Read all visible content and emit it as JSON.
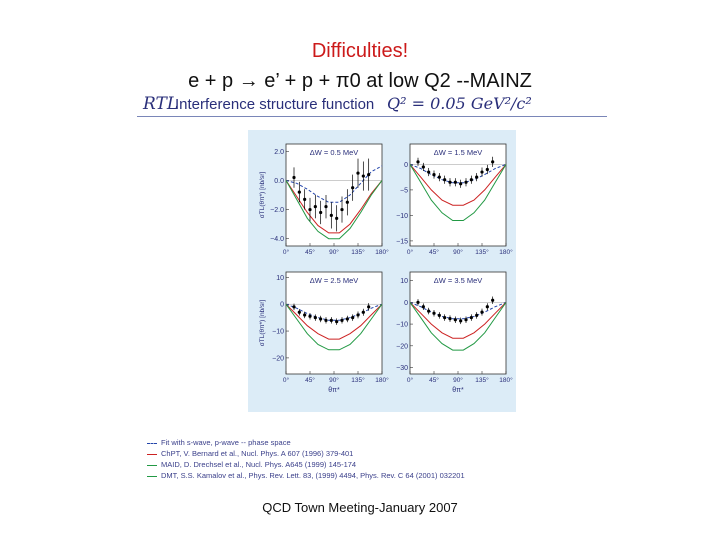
{
  "slide": {
    "title": "Difficulties!",
    "subtitle": "e + p → e’ + p + π0 at low Q2 --MAINZ",
    "footer": "QCD Town Meeting-January 2007"
  },
  "figure": {
    "rtl_label": "RTL",
    "header": "Interference structure function",
    "q2_label": "Q² = 0.05 GeV²/c²"
  },
  "legend": [
    {
      "label": "Fit with s-wave, p-wave -- phase space",
      "color": "#2244aa"
    },
    {
      "label": "ChPT, V. Bernard et al., Nucl. Phys. A 607 (1996) 379-401",
      "color": "#cc2222"
    },
    {
      "label": "MAID, D. Drechsel et al., Nucl. Phys. A645 (1999) 145-174",
      "color": "#229944"
    },
    {
      "label": "DMT, S.S. Kamalov et al., Phys. Rev. Lett. 83, (1999) 4494, Phys. Rev. C 64 (2001) 032201",
      "color": "#229944"
    }
  ],
  "colors": {
    "title": "#cc1a1a",
    "panel_bg": "#dcecf7",
    "fit": "#2244aa",
    "chpt": "#cc2222",
    "maid": "#229944"
  },
  "chart_data": [
    {
      "type": "line",
      "label": "ΔW = 0.5 MeV",
      "ylabel": "σTL(θπ*) [nb/sr]",
      "xlim": [
        0,
        180
      ],
      "ylim": [
        -4.5,
        2.5
      ],
      "xticks": [
        "0°",
        "45°",
        "90°",
        "135°",
        "180°"
      ],
      "yticks": [
        {
          "v": 2.0,
          "t": "2.0"
        },
        {
          "v": 0.0,
          "t": "0.0"
        },
        {
          "v": -2.0,
          "t": "−2.0"
        },
        {
          "v": -4.0,
          "t": "−4.0"
        }
      ],
      "points": {
        "x": [
          15,
          25,
          35,
          45,
          55,
          65,
          75,
          85,
          95,
          105,
          115,
          125,
          135,
          145,
          155
        ],
        "y": [
          0.2,
          -0.8,
          -1.3,
          -2.0,
          -1.8,
          -2.2,
          -1.8,
          -2.4,
          -2.6,
          -2.0,
          -1.5,
          -0.5,
          0.5,
          0.3,
          0.4
        ],
        "err": [
          0.7,
          0.7,
          0.7,
          0.8,
          0.8,
          0.8,
          0.8,
          0.9,
          0.9,
          0.9,
          0.9,
          0.9,
          1.0,
          1.0,
          1.1
        ]
      },
      "series": [
        {
          "x": [
            0,
            20,
            40,
            60,
            80,
            100,
            120,
            140,
            160,
            180
          ],
          "y": [
            0.0,
            -0.2,
            -0.6,
            -1.1,
            -1.5,
            -1.5,
            -1.0,
            -0.2,
            0.6,
            1.0
          ],
          "color": "#2244aa",
          "dash": true
        },
        {
          "x": [
            0,
            20,
            40,
            60,
            80,
            100,
            120,
            140,
            160,
            180
          ],
          "y": [
            0.0,
            -1.1,
            -2.2,
            -3.1,
            -3.6,
            -3.6,
            -3.0,
            -2.0,
            -0.9,
            0.0
          ],
          "color": "#cc2222"
        },
        {
          "x": [
            0,
            20,
            40,
            60,
            80,
            100,
            120,
            140,
            160,
            180
          ],
          "y": [
            0.0,
            -1.3,
            -2.6,
            -3.5,
            -4.0,
            -4.0,
            -3.3,
            -2.2,
            -1.0,
            0.0
          ],
          "color": "#229944"
        }
      ]
    },
    {
      "type": "line",
      "label": "ΔW = 1.5 MeV",
      "ylabel": "",
      "xlim": [
        0,
        180
      ],
      "ylim": [
        -16,
        4
      ],
      "xticks": [
        "0°",
        "45°",
        "90°",
        "135°",
        "180°"
      ],
      "yticks": [
        {
          "v": 0,
          "t": "0"
        },
        {
          "v": -5,
          "t": "−5"
        },
        {
          "v": -10,
          "t": "−10"
        },
        {
          "v": -15,
          "t": "−15"
        }
      ],
      "points": {
        "x": [
          15,
          25,
          35,
          45,
          55,
          65,
          75,
          85,
          95,
          105,
          115,
          125,
          135,
          145,
          155
        ],
        "y": [
          0.5,
          -0.5,
          -1.5,
          -2.0,
          -2.5,
          -3.0,
          -3.5,
          -3.5,
          -3.8,
          -3.5,
          -3.0,
          -2.5,
          -1.5,
          -1.0,
          0.5
        ],
        "err": [
          0.8,
          0.8,
          0.8,
          0.8,
          0.8,
          0.8,
          0.8,
          0.8,
          0.8,
          0.8,
          0.8,
          0.8,
          0.9,
          0.9,
          1.0
        ]
      },
      "series": [
        {
          "x": [
            0,
            20,
            40,
            60,
            80,
            100,
            120,
            140,
            160,
            180
          ],
          "y": [
            0.0,
            -0.8,
            -2.0,
            -3.0,
            -3.6,
            -3.6,
            -3.0,
            -2.0,
            -0.8,
            0.0
          ],
          "color": "#2244aa",
          "dash": true
        },
        {
          "x": [
            0,
            20,
            40,
            60,
            80,
            100,
            120,
            140,
            160,
            180
          ],
          "y": [
            0.0,
            -2.5,
            -5.0,
            -7.0,
            -8.0,
            -8.0,
            -7.0,
            -5.0,
            -2.5,
            0.0
          ],
          "color": "#cc2222"
        },
        {
          "x": [
            0,
            20,
            40,
            60,
            80,
            100,
            120,
            140,
            160,
            180
          ],
          "y": [
            0.0,
            -3.5,
            -7.0,
            -9.5,
            -11.0,
            -11.0,
            -9.5,
            -7.0,
            -3.5,
            0.0
          ],
          "color": "#229944"
        }
      ]
    },
    {
      "type": "line",
      "label": "ΔW = 2.5 MeV",
      "ylabel": "σTL(θπ*) [nb/sr]",
      "xlim": [
        0,
        180
      ],
      "ylim": [
        -26,
        12
      ],
      "xticks": [
        "0°",
        "45°",
        "90°",
        "135°",
        "180°"
      ],
      "yticks": [
        {
          "v": 10,
          "t": "10"
        },
        {
          "v": 0,
          "t": "0"
        },
        {
          "v": -10,
          "t": "−10"
        },
        {
          "v": -20,
          "t": "−20"
        }
      ],
      "xlabel": "θπ*",
      "points": {
        "x": [
          15,
          25,
          35,
          45,
          55,
          65,
          75,
          85,
          95,
          105,
          115,
          125,
          135,
          145,
          155
        ],
        "y": [
          -1,
          -3,
          -4,
          -4.5,
          -5,
          -5.5,
          -6,
          -6,
          -6.5,
          -6,
          -5.5,
          -5,
          -4,
          -3,
          -1
        ],
        "err": [
          1.2,
          1.2,
          1.2,
          1.2,
          1.2,
          1.2,
          1.2,
          1.2,
          1.2,
          1.2,
          1.2,
          1.2,
          1.3,
          1.3,
          1.4
        ]
      },
      "series": [
        {
          "x": [
            0,
            20,
            40,
            60,
            80,
            100,
            120,
            140,
            160,
            180
          ],
          "y": [
            0.0,
            -1.5,
            -3.5,
            -5.0,
            -6.0,
            -6.0,
            -5.0,
            -3.5,
            -1.5,
            0.0
          ],
          "color": "#2244aa",
          "dash": true
        },
        {
          "x": [
            0,
            20,
            40,
            60,
            80,
            100,
            120,
            140,
            160,
            180
          ],
          "y": [
            0.0,
            -4.0,
            -8.0,
            -11.0,
            -13.0,
            -13.0,
            -11.0,
            -8.0,
            -4.0,
            0.0
          ],
          "color": "#cc2222"
        },
        {
          "x": [
            0,
            20,
            40,
            60,
            80,
            100,
            120,
            140,
            160,
            180
          ],
          "y": [
            0.0,
            -5.5,
            -11.0,
            -15.0,
            -17.0,
            -17.0,
            -15.0,
            -11.0,
            -5.5,
            0.0
          ],
          "color": "#229944"
        }
      ]
    },
    {
      "type": "line",
      "label": "ΔW = 3.5 MeV",
      "ylabel": "",
      "xlim": [
        0,
        180
      ],
      "ylim": [
        -33,
        14
      ],
      "xticks": [
        "0°",
        "45°",
        "90°",
        "135°",
        "180°"
      ],
      "yticks": [
        {
          "v": 10,
          "t": "10"
        },
        {
          "v": 0,
          "t": "0"
        },
        {
          "v": -10,
          "t": "−10"
        },
        {
          "v": -20,
          "t": "−20"
        },
        {
          "v": -30,
          "t": "−30"
        }
      ],
      "xlabel": "θπ*",
      "points": {
        "x": [
          15,
          25,
          35,
          45,
          55,
          65,
          75,
          85,
          95,
          105,
          115,
          125,
          135,
          145,
          155
        ],
        "y": [
          0,
          -2,
          -4,
          -5,
          -6,
          -7,
          -7.5,
          -8,
          -8.5,
          -8,
          -7,
          -6,
          -4.5,
          -2,
          1
        ],
        "err": [
          1.5,
          1.5,
          1.5,
          1.5,
          1.5,
          1.5,
          1.5,
          1.5,
          1.5,
          1.5,
          1.5,
          1.5,
          1.6,
          1.6,
          1.7
        ]
      },
      "series": [
        {
          "x": [
            0,
            20,
            40,
            60,
            80,
            100,
            120,
            140,
            160,
            180
          ],
          "y": [
            0.0,
            -2.0,
            -4.5,
            -6.5,
            -7.5,
            -7.5,
            -6.5,
            -4.5,
            -2.0,
            0.0
          ],
          "color": "#2244aa",
          "dash": true
        },
        {
          "x": [
            0,
            20,
            40,
            60,
            80,
            100,
            120,
            140,
            160,
            180
          ],
          "y": [
            0.0,
            -5.0,
            -10.0,
            -14.0,
            -16.5,
            -16.5,
            -14.0,
            -10.0,
            -5.0,
            0.0
          ],
          "color": "#cc2222"
        },
        {
          "x": [
            0,
            20,
            40,
            60,
            80,
            100,
            120,
            140,
            160,
            180
          ],
          "y": [
            0.0,
            -7.0,
            -14.0,
            -19.0,
            -22.0,
            -22.0,
            -19.0,
            -14.0,
            -7.0,
            0.0
          ],
          "color": "#229944"
        }
      ]
    }
  ]
}
